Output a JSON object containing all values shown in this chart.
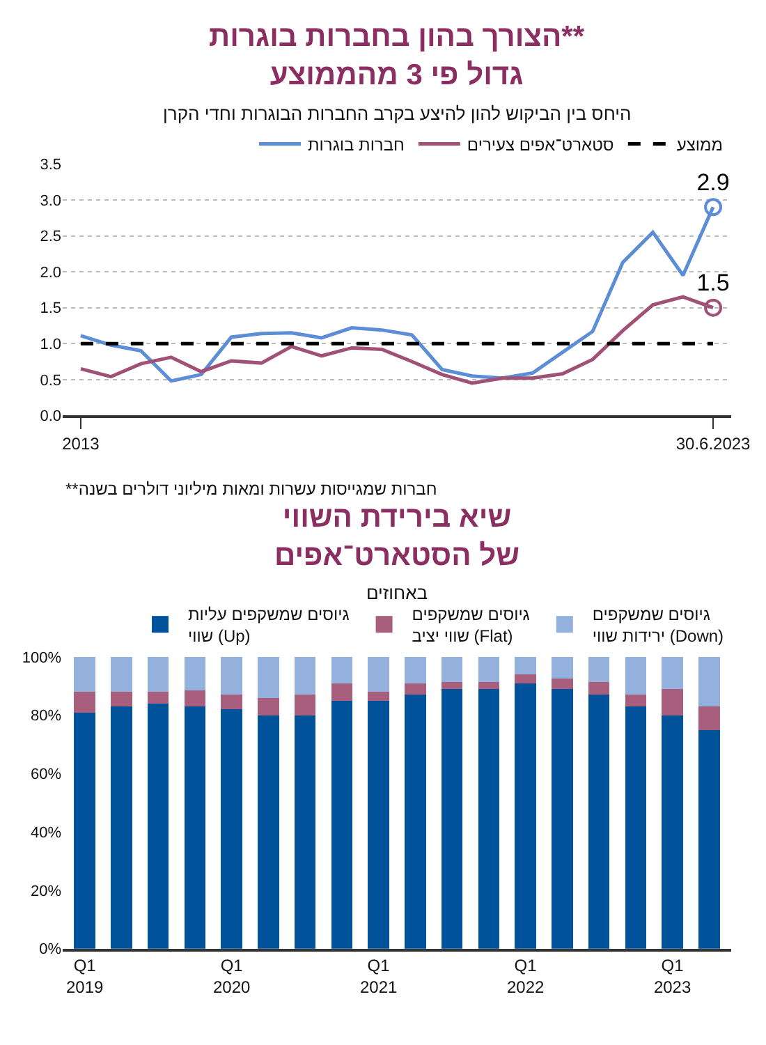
{
  "chart_data": [
    {
      "type": "line",
      "title": "הצורך בהון בחברות בוגרות**\nגדול פי 3 מהממוצע",
      "subtitle": "היחס בין הביקוש להון להיצע בקרב החברות הבוגרות וחדי הקרן",
      "categories": [
        "2013",
        null,
        null,
        null,
        null,
        null,
        null,
        null,
        null,
        null,
        null,
        null,
        null,
        null,
        null,
        null,
        null,
        null,
        null,
        null,
        null,
        "30.6.2023"
      ],
      "series": [
        {
          "name": "חברות בוגרות",
          "color": "#5b8ed6",
          "values": [
            1.11,
            0.98,
            0.9,
            0.48,
            0.57,
            1.09,
            1.14,
            1.15,
            1.08,
            1.22,
            1.19,
            1.12,
            0.64,
            0.55,
            0.52,
            0.59,
            0.88,
            1.17,
            2.13,
            2.55,
            1.95,
            2.9
          ],
          "value_labels": [
            null,
            null,
            null,
            null,
            null,
            null,
            null,
            null,
            null,
            null,
            null,
            null,
            null,
            null,
            null,
            null,
            null,
            null,
            null,
            null,
            null,
            "2.9"
          ]
        },
        {
          "name": "סטארט־אפים צעירים",
          "color": "#a05276",
          "values": [
            0.65,
            0.54,
            0.72,
            0.81,
            0.61,
            0.76,
            0.73,
            0.96,
            0.83,
            0.94,
            0.92,
            0.75,
            0.57,
            0.45,
            0.52,
            0.52,
            0.58,
            0.78,
            1.18,
            1.54,
            1.65,
            1.5
          ],
          "value_labels": [
            null,
            null,
            null,
            null,
            null,
            null,
            null,
            null,
            null,
            null,
            null,
            null,
            null,
            null,
            null,
            null,
            null,
            null,
            null,
            null,
            null,
            "1.5"
          ]
        },
        {
          "name": "ממוצע",
          "color": "#000000",
          "line_style": "dashed",
          "values": [
            1.0,
            1.0,
            1.0,
            1.0,
            1.0,
            1.0,
            1.0,
            1.0,
            1.0,
            1.0,
            1.0,
            1.0,
            1.0,
            1.0,
            1.0,
            1.0,
            1.0,
            1.0,
            1.0,
            1.0,
            1.0,
            1.0
          ]
        }
      ],
      "ylim": [
        0,
        3.5
      ],
      "yticks": [
        {
          "value": 0,
          "label": "0.0"
        },
        0.5,
        {
          "value": 1,
          "label": "1.0"
        },
        1.5,
        {
          "value": 2,
          "label": "2.0"
        },
        2.5,
        {
          "value": 3,
          "label": "3.0"
        },
        3.5
      ],
      "grid": "y",
      "legend": "top",
      "annotations": [
        "**חברות שמגייסות עשרות ומאות מיליוני דולרים בשנה"
      ]
    },
    {
      "type": "bar",
      "stacked": true,
      "title": "שיא בירידת השווי\nשל הסטארט־אפים",
      "subtitle": "באחוזים",
      "categories": [
        "Q1\n2019",
        null,
        null,
        null,
        "Q1\n2020",
        null,
        null,
        null,
        "Q1\n2021",
        null,
        null,
        null,
        "Q1\n2022",
        null,
        null,
        null,
        "Q1\n2023",
        null
      ],
      "series": [
        {
          "name": "גיוסים שמשקפים עליות\nשווי (Up)",
          "color": "#00529b",
          "values": [
            81,
            83,
            84,
            83,
            82,
            80,
            80,
            85,
            85,
            87,
            89,
            89,
            91,
            89,
            87,
            83,
            80,
            75
          ]
        },
        {
          "name": "גיוסים שמשקפים\nשווי יציב (Flat)",
          "color": "#a85f7e",
          "values": [
            7,
            5,
            4,
            5.5,
            5,
            6,
            7,
            6,
            3,
            4,
            2.5,
            2.5,
            3,
            3.5,
            4.5,
            4,
            9,
            8
          ]
        },
        {
          "name": "גיוסים שמשקפים\nירידות שווי (Down)",
          "color": "#94b0dc",
          "values": [
            12,
            12,
            12,
            11.5,
            13,
            14,
            13,
            9,
            12,
            9,
            8.5,
            8.5,
            6,
            7.5,
            8.5,
            13,
            11,
            17
          ]
        }
      ],
      "ylim": [
        0,
        100
      ],
      "yticks": [
        {
          "value": 0,
          "label": "0%"
        },
        {
          "value": 20,
          "label": "20%"
        },
        {
          "value": 40,
          "label": "40%"
        },
        {
          "value": 60,
          "label": "60%"
        },
        {
          "value": 80,
          "label": "80%"
        },
        {
          "value": 100,
          "label": "100%"
        }
      ],
      "grid": false,
      "legend": "top"
    }
  ]
}
